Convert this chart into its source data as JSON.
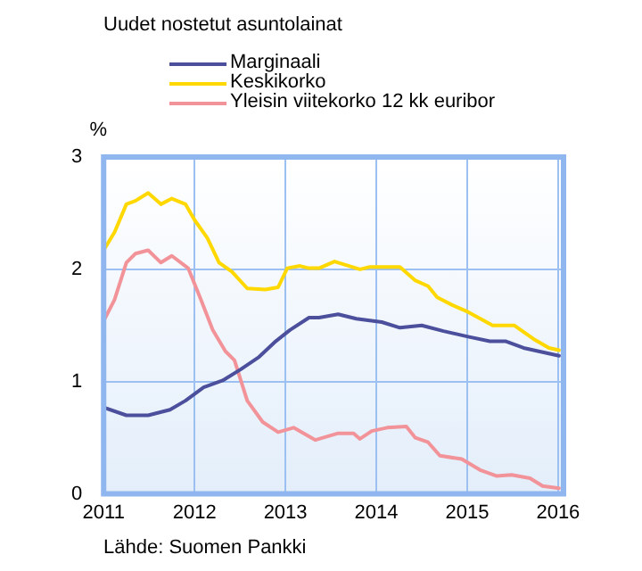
{
  "chart_data": {
    "type": "line",
    "title": "Uudet nostetut asuntolainat",
    "ylabel": "%",
    "xlim": [
      2011,
      2016.06
    ],
    "xticks": [
      2011,
      2012,
      2013,
      2014,
      2015,
      2016
    ],
    "ylim": [
      0,
      3
    ],
    "yticks": [
      0,
      1,
      2,
      3
    ],
    "grid": true,
    "legend": "top left",
    "marker": "none",
    "line_style": "solid",
    "series": [
      {
        "name": "Marginaali",
        "color": "#4b4f9c",
        "x": [
          2011.0,
          2011.25,
          2011.49,
          2011.73,
          2011.9,
          2012.1,
          2012.31,
          2012.51,
          2012.71,
          2012.88,
          2013.05,
          2013.26,
          2013.37,
          2013.58,
          2013.78,
          2014.06,
          2014.26,
          2014.5,
          2014.74,
          2015.01,
          2015.25,
          2015.42,
          2015.62,
          2016.01
        ],
        "values": [
          0.77,
          0.7,
          0.7,
          0.75,
          0.83,
          0.95,
          1.01,
          1.11,
          1.22,
          1.35,
          1.46,
          1.57,
          1.57,
          1.6,
          1.56,
          1.53,
          1.48,
          1.5,
          1.45,
          1.4,
          1.36,
          1.36,
          1.3,
          1.23
        ]
      },
      {
        "name": "Keskikorko",
        "color": "#ffd800",
        "x": [
          2011.0,
          2011.12,
          2011.25,
          2011.35,
          2011.49,
          2011.63,
          2011.75,
          2011.9,
          2012.0,
          2012.14,
          2012.27,
          2012.41,
          2012.58,
          2012.78,
          2012.92,
          2013.02,
          2013.16,
          2013.26,
          2013.37,
          2013.54,
          2013.82,
          2013.92,
          2014.26,
          2014.43,
          2014.57,
          2014.67,
          2014.84,
          2015.01,
          2015.28,
          2015.52,
          2015.73,
          2015.9,
          2016.01
        ],
        "values": [
          2.17,
          2.33,
          2.58,
          2.61,
          2.68,
          2.58,
          2.63,
          2.58,
          2.44,
          2.28,
          2.06,
          1.98,
          1.83,
          1.82,
          1.84,
          2.01,
          2.03,
          2.01,
          2.01,
          2.07,
          2.0,
          2.02,
          2.02,
          1.9,
          1.85,
          1.75,
          1.68,
          1.62,
          1.5,
          1.5,
          1.38,
          1.3,
          1.28
        ]
      },
      {
        "name": "Yleisin viitekorko 12 kk euribor",
        "color": "#f29399",
        "x": [
          2011.0,
          2011.12,
          2011.25,
          2011.35,
          2011.49,
          2011.63,
          2011.75,
          2011.93,
          2012.07,
          2012.2,
          2012.34,
          2012.44,
          2012.58,
          2012.75,
          2012.92,
          2013.09,
          2013.33,
          2013.58,
          2013.75,
          2013.82,
          2013.95,
          2014.12,
          2014.33,
          2014.43,
          2014.57,
          2014.7,
          2014.94,
          2015.15,
          2015.32,
          2015.49,
          2015.69,
          2015.83,
          2016.01
        ],
        "values": [
          1.54,
          1.73,
          2.06,
          2.14,
          2.17,
          2.06,
          2.12,
          2.01,
          1.73,
          1.46,
          1.27,
          1.19,
          0.83,
          0.64,
          0.55,
          0.59,
          0.48,
          0.54,
          0.54,
          0.49,
          0.56,
          0.59,
          0.6,
          0.5,
          0.46,
          0.34,
          0.31,
          0.21,
          0.16,
          0.17,
          0.14,
          0.07,
          0.05
        ]
      }
    ],
    "annotations": [
      "Lähde: Suomen Pankki"
    ]
  }
}
